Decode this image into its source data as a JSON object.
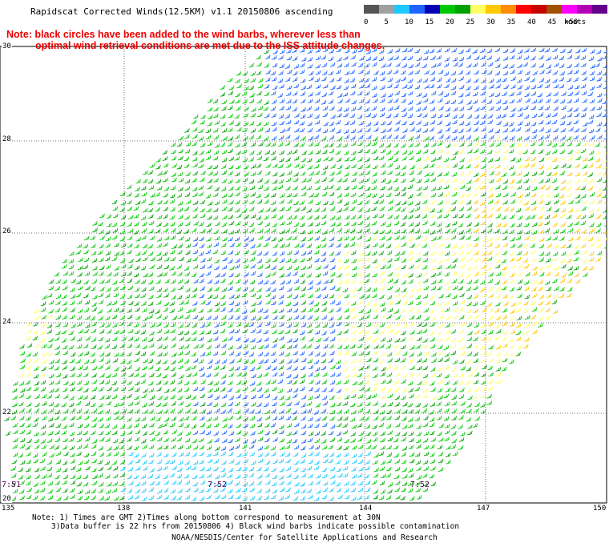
{
  "title": "Rapidscat Corrected Winds(12.5KM) v1.1 20150806 ascending",
  "warning_note": {
    "line1": "Note: black circles have been added to the wind barbs, wherever less than",
    "line2": "optimal wind retrieval conditions are met due to the ISS attitude changes."
  },
  "legend": {
    "labels": [
      "0",
      "5",
      "10",
      "15",
      "20",
      "25",
      "30",
      "35",
      "40",
      "45",
      ">50"
    ],
    "unit": "knots",
    "colors": [
      "#555555",
      "#a0a0a0",
      "#1ec8ff",
      "#1e64ff",
      "#0000b4",
      "#00c800",
      "#00a000",
      "#ffff64",
      "#ffc800",
      "#ff8c00",
      "#ff0000",
      "#c80000",
      "#a05000",
      "#ff00ff",
      "#b400b4",
      "#64008c"
    ]
  },
  "map": {
    "lat_labels": [
      "30",
      "28",
      "26",
      "24",
      "22",
      "20"
    ],
    "lon_labels": [
      "135",
      "138",
      "141",
      "144",
      "147",
      "150"
    ],
    "time_labels": [
      "7:51",
      "7:52",
      "7:52"
    ]
  },
  "bottom_notes": {
    "line1": "Note: 1) Times are GMT 2)Times along bottom correspond to measurement at 30N",
    "line2": "3)Data buffer is 22 hrs from 20150806 4) Black wind barbs indicate possible contamination"
  },
  "credit": "NOAA/NESDIS/Center for Satellite Applications and Research"
}
